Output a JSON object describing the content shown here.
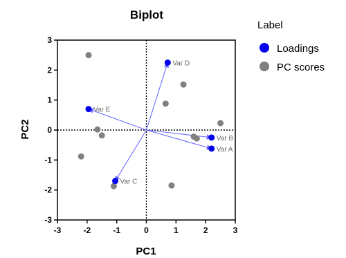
{
  "chart_data": {
    "type": "scatter",
    "title": "Biplot",
    "xlabel": "PC1",
    "ylabel": "PC2",
    "xlim": [
      -3,
      3
    ],
    "ylim": [
      -3,
      3
    ],
    "xticks": [
      -3,
      -2,
      -1,
      0,
      1,
      2,
      3
    ],
    "yticks": [
      -3,
      -2,
      -1,
      0,
      1,
      2,
      3
    ],
    "grid": false,
    "zero_lines": "dotted",
    "legend": {
      "title": "Label",
      "placement": "right",
      "entries": [
        {
          "label": "Loadings",
          "color": "#0000ee"
        },
        {
          "label": "PC scores",
          "color": "#808080"
        }
      ]
    },
    "series": [
      {
        "name": "Loadings",
        "color": "#0000ee",
        "points": [
          {
            "label": "Var D",
            "x": 0.72,
            "y": 2.25
          },
          {
            "label": "Var E",
            "x": -1.95,
            "y": 0.7
          },
          {
            "label": "Var B",
            "x": 2.2,
            "y": -0.25
          },
          {
            "label": "Var A",
            "x": 2.2,
            "y": -0.62
          },
          {
            "label": "Var C",
            "x": -1.05,
            "y": -1.7
          }
        ]
      },
      {
        "name": "PC scores",
        "color": "#808080",
        "points": [
          {
            "x": -1.95,
            "y": 2.5
          },
          {
            "x": 1.25,
            "y": 1.52
          },
          {
            "x": 0.65,
            "y": 0.88
          },
          {
            "x": -1.65,
            "y": 0.02
          },
          {
            "x": -1.5,
            "y": -0.18
          },
          {
            "x": -2.2,
            "y": -0.88
          },
          {
            "x": 1.6,
            "y": -0.22
          },
          {
            "x": 1.7,
            "y": -0.28
          },
          {
            "x": 2.5,
            "y": 0.23
          },
          {
            "x": -1.1,
            "y": -1.87
          },
          {
            "x": 0.85,
            "y": -1.85
          }
        ]
      }
    ]
  }
}
